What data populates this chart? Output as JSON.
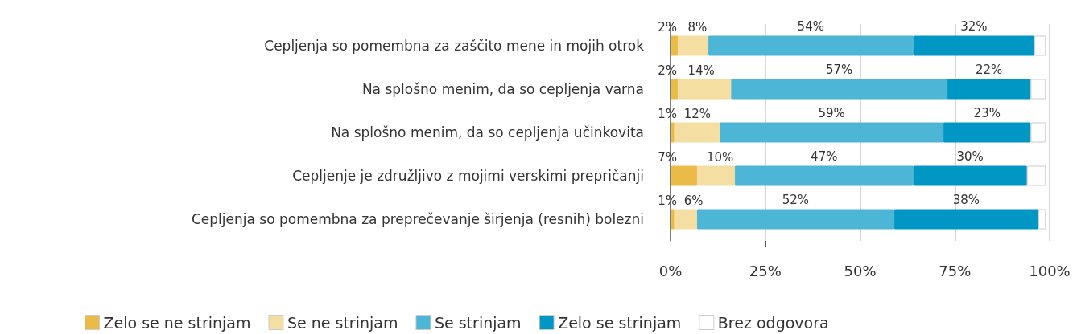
{
  "chart_data": {
    "type": "bar",
    "orientation": "horizontal",
    "stacked": true,
    "categories": [
      "Cepljenja so pomembna za zaščito mene in mojih otrok",
      "Na splošno menim, da so cepljenja varna",
      "Na splošno menim, da so cepljenja učinkovita",
      "Cepljenje je združljivo z mojimi verskimi prepričanji",
      "Cepljenja so pomembna za preprečevanje širjenja (resnih) bolezni"
    ],
    "series": [
      {
        "name": "Zelo se ne strinjam",
        "color": "#ebbb48",
        "values": [
          2,
          2,
          1,
          7,
          1
        ],
        "value_labels": [
          "2%",
          "2%",
          "1%",
          "7%",
          "1%"
        ]
      },
      {
        "name": "Se ne strinjam",
        "color": "#f4dea2",
        "values": [
          8,
          14,
          12,
          10,
          6
        ],
        "value_labels": [
          "8%",
          "14%",
          "12%",
          "10%",
          "6%"
        ]
      },
      {
        "name": "Se strinjam",
        "color": "#4db5d6",
        "values": [
          54,
          57,
          59,
          47,
          52
        ],
        "value_labels": [
          "54%",
          "57%",
          "59%",
          "47%",
          "52%"
        ]
      },
      {
        "name": "Zelo se strinjam",
        "color": "#0097c4",
        "values": [
          32,
          22,
          23,
          30,
          38
        ],
        "value_labels": [
          "32%",
          "22%",
          "23%",
          "30%",
          "38%"
        ]
      },
      {
        "name": "Brez odgovora",
        "color": "#ffffff",
        "values": [
          3,
          4,
          4,
          5,
          2
        ],
        "value_labels": [
          null,
          null,
          null,
          null,
          null
        ]
      }
    ],
    "xlim": [
      0,
      100
    ],
    "xticks": [
      {
        "value": 0,
        "label": "0%"
      },
      {
        "value": 25,
        "label": "25%"
      },
      {
        "value": 50,
        "label": "50%"
      },
      {
        "value": 75,
        "label": "75%"
      },
      {
        "value": 100,
        "label": "100%"
      }
    ],
    "grid": "x",
    "legend": "bottom"
  }
}
